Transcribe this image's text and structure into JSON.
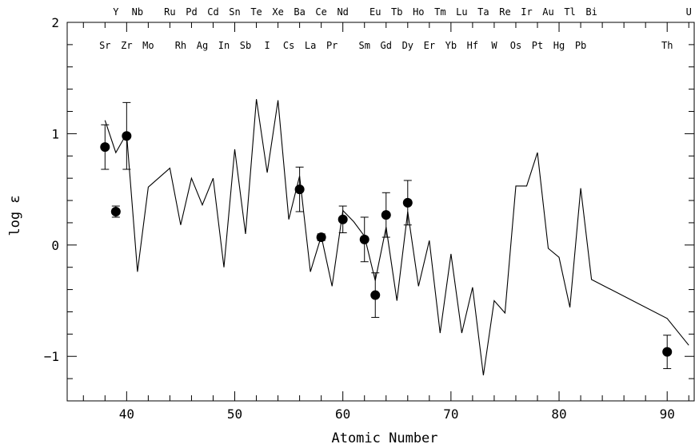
{
  "chart_data": {
    "type": "line",
    "xlabel": "Atomic Number",
    "ylabel": "log ε",
    "xlim": [
      34.5,
      92.5
    ],
    "ylim": [
      -1.4,
      2.0
    ],
    "x_ticks": [
      40,
      50,
      60,
      70,
      80,
      90
    ],
    "y_ticks": [
      -1,
      0,
      1,
      2
    ],
    "y_tick_labels": [
      "−1",
      "0",
      "1",
      "2"
    ],
    "grid": false,
    "top_elements_upper": [
      {
        "z": 39,
        "symbol": "Y"
      },
      {
        "z": 41,
        "symbol": "Nb"
      },
      {
        "z": 44,
        "symbol": "Ru"
      },
      {
        "z": 46,
        "symbol": "Pd"
      },
      {
        "z": 48,
        "symbol": "Cd"
      },
      {
        "z": 50,
        "symbol": "Sn"
      },
      {
        "z": 52,
        "symbol": "Te"
      },
      {
        "z": 54,
        "symbol": "Xe"
      },
      {
        "z": 56,
        "symbol": "Ba"
      },
      {
        "z": 58,
        "symbol": "Ce"
      },
      {
        "z": 60,
        "symbol": "Nd"
      },
      {
        "z": 63,
        "symbol": "Eu"
      },
      {
        "z": 65,
        "symbol": "Tb"
      },
      {
        "z": 67,
        "symbol": "Ho"
      },
      {
        "z": 69,
        "symbol": "Tm"
      },
      {
        "z": 71,
        "symbol": "Lu"
      },
      {
        "z": 73,
        "symbol": "Ta"
      },
      {
        "z": 75,
        "symbol": "Re"
      },
      {
        "z": 77,
        "symbol": "Ir"
      },
      {
        "z": 79,
        "symbol": "Au"
      },
      {
        "z": 81,
        "symbol": "Tl"
      },
      {
        "z": 83,
        "symbol": "Bi"
      },
      {
        "z": 92,
        "symbol": "U"
      }
    ],
    "top_elements_lower": [
      {
        "z": 38,
        "symbol": "Sr"
      },
      {
        "z": 40,
        "symbol": "Zr"
      },
      {
        "z": 42,
        "symbol": "Mo"
      },
      {
        "z": 45,
        "symbol": "Rh"
      },
      {
        "z": 47,
        "symbol": "Ag"
      },
      {
        "z": 49,
        "symbol": "In"
      },
      {
        "z": 51,
        "symbol": "Sb"
      },
      {
        "z": 53,
        "symbol": "I"
      },
      {
        "z": 55,
        "symbol": "Cs"
      },
      {
        "z": 57,
        "symbol": "La"
      },
      {
        "z": 59,
        "symbol": "Pr"
      },
      {
        "z": 62,
        "symbol": "Sm"
      },
      {
        "z": 64,
        "symbol": "Gd"
      },
      {
        "z": 66,
        "symbol": "Dy"
      },
      {
        "z": 68,
        "symbol": "Er"
      },
      {
        "z": 70,
        "symbol": "Yb"
      },
      {
        "z": 72,
        "symbol": "Hf"
      },
      {
        "z": 74,
        "symbol": "W"
      },
      {
        "z": 76,
        "symbol": "Os"
      },
      {
        "z": 78,
        "symbol": "Pt"
      },
      {
        "z": 80,
        "symbol": "Hg"
      },
      {
        "z": 82,
        "symbol": "Pb"
      },
      {
        "z": 90,
        "symbol": "Th"
      }
    ],
    "series": [
      {
        "type": "line",
        "x": [
          38,
          39,
          40,
          41,
          42,
          44,
          45,
          46,
          47,
          48,
          49,
          50,
          51,
          52,
          53,
          54,
          55,
          56,
          57,
          58,
          59,
          60,
          61,
          62,
          63,
          64,
          65,
          66,
          67,
          68,
          69,
          70,
          71,
          72,
          73,
          74,
          75,
          76,
          77,
          78,
          79,
          80,
          81,
          82,
          83,
          90,
          92
        ],
        "y": [
          1.12,
          0.83,
          1.0,
          -0.24,
          0.52,
          0.69,
          0.18,
          0.6,
          0.36,
          0.6,
          -0.2,
          0.86,
          0.1,
          1.31,
          0.65,
          1.3,
          0.23,
          0.62,
          -0.24,
          0.08,
          -0.37,
          0.31,
          0.21,
          0.08,
          -0.32,
          0.16,
          -0.5,
          0.3,
          -0.37,
          0.04,
          -0.79,
          -0.08,
          -0.79,
          -0.38,
          -1.17,
          -0.5,
          -0.61,
          0.53,
          0.53,
          0.83,
          -0.03,
          -0.11,
          -0.56,
          0.51,
          -0.31,
          -0.66,
          -0.9
        ]
      },
      {
        "type": "scatter",
        "marker": "filled-circle",
        "x": [
          38,
          39,
          40,
          56,
          58,
          60,
          62,
          63,
          64,
          66,
          90
        ],
        "y": [
          0.88,
          0.3,
          0.98,
          0.5,
          0.07,
          0.23,
          0.05,
          -0.45,
          0.27,
          0.38,
          -0.96
        ],
        "err": [
          0.2,
          0.05,
          0.3,
          0.2,
          0.03,
          0.12,
          0.2,
          0.2,
          0.2,
          0.2,
          0.15
        ]
      }
    ]
  }
}
